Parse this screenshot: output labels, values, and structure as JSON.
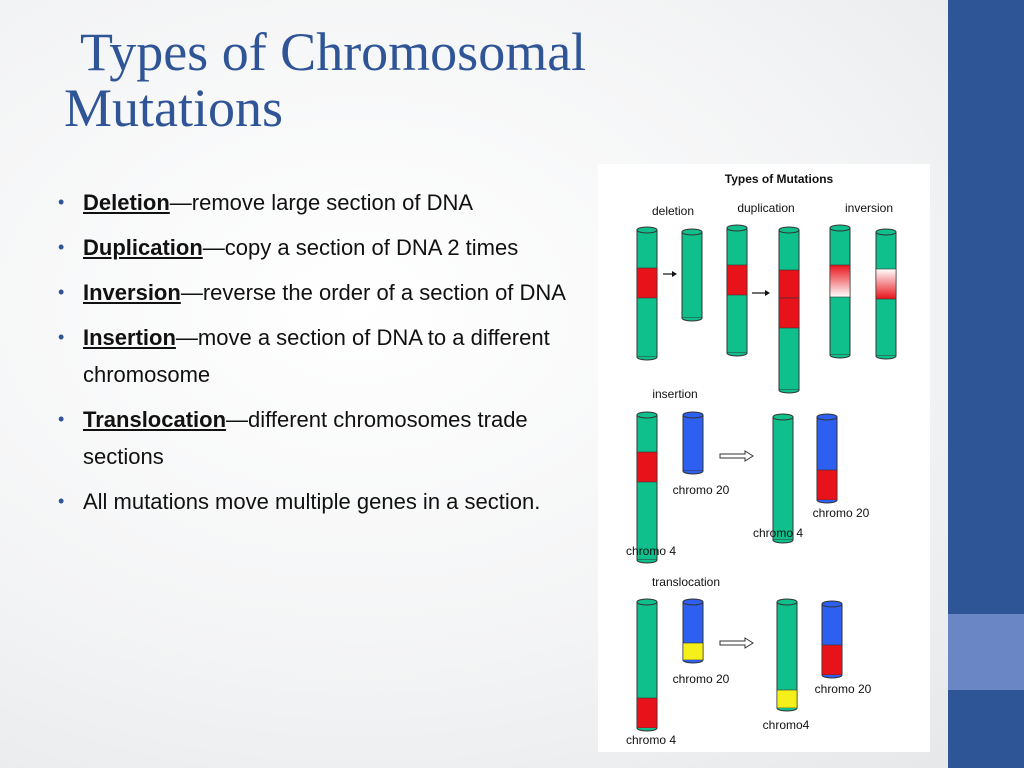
{
  "title": "Types of Chromosomal Mutations",
  "bullets": [
    {
      "term": "Deletion",
      "text": "—remove large section of DNA"
    },
    {
      "term": "Duplication",
      "text": "—copy a section of DNA 2 times"
    },
    {
      "term": "Inversion",
      "text": "—reverse the order of a section of DNA"
    },
    {
      "term": "Insertion",
      "text": "—move a section of DNA to a different chromosome"
    },
    {
      "term": "Translocation",
      "text": "—different chromosomes trade sections"
    },
    {
      "text": "All mutations move multiple genes in a section."
    }
  ],
  "figure": {
    "title": "Types of Mutations",
    "labels": [
      "deletion",
      "duplication",
      "inversion",
      "insertion",
      "chromo 20",
      "chromo 4",
      "chromo 20",
      "chromo 4",
      "translocation",
      "chromo 20",
      "chromo 20",
      "chromo4",
      "chromo 4"
    ]
  }
}
